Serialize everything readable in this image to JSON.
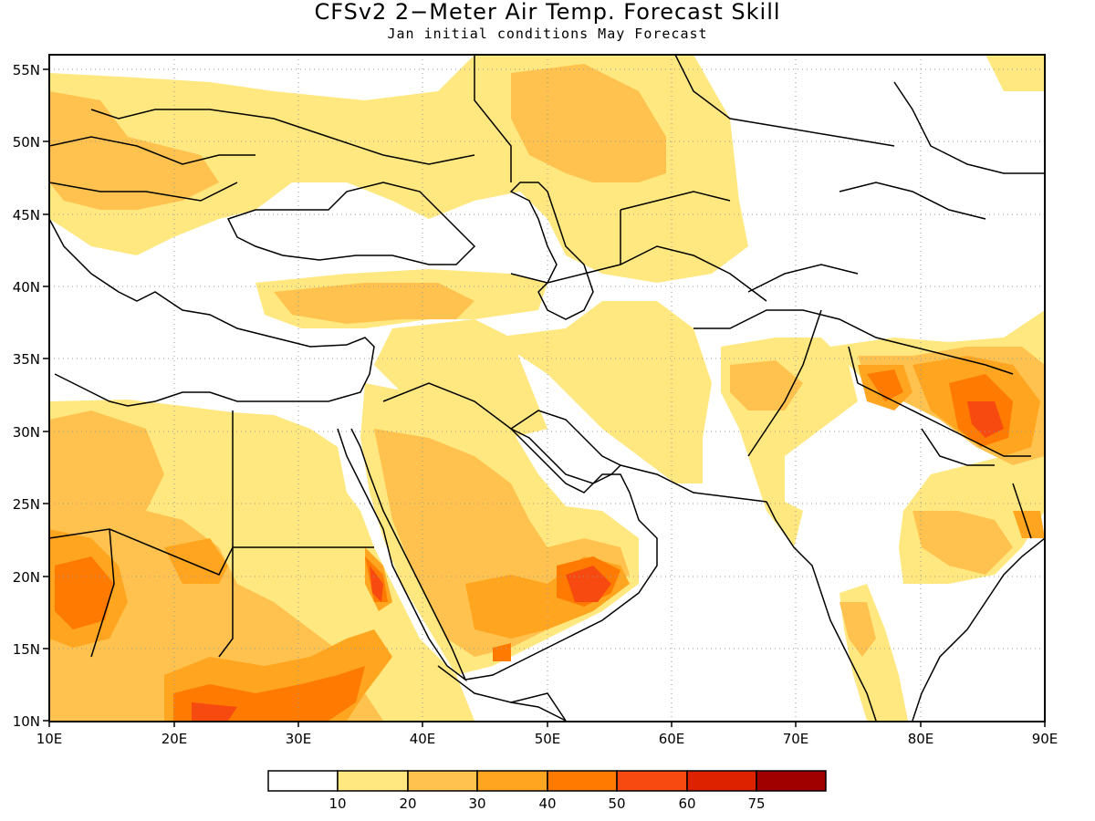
{
  "title": "CFSv2 2−Meter Air Temp. Forecast Skill",
  "subtitle": "Jan initial conditions  May Forecast",
  "map": {
    "lon_range": [
      10,
      90
    ],
    "lat_range": [
      10,
      56
    ],
    "lon_ticks": [
      "10E",
      "20E",
      "30E",
      "40E",
      "50E",
      "60E",
      "70E",
      "80E",
      "90E"
    ],
    "lat_ticks": [
      "10N",
      "15N",
      "20N",
      "25N",
      "30N",
      "35N",
      "40N",
      "45N",
      "50N",
      "55N"
    ]
  },
  "legend": {
    "colors": [
      "#ffffff",
      "#ffe87f",
      "#ffc24f",
      "#ffa51f",
      "#ff7a00",
      "#f74a10",
      "#dd2200",
      "#a00000"
    ],
    "labels": [
      "10",
      "20",
      "30",
      "40",
      "50",
      "60",
      "75"
    ]
  }
}
